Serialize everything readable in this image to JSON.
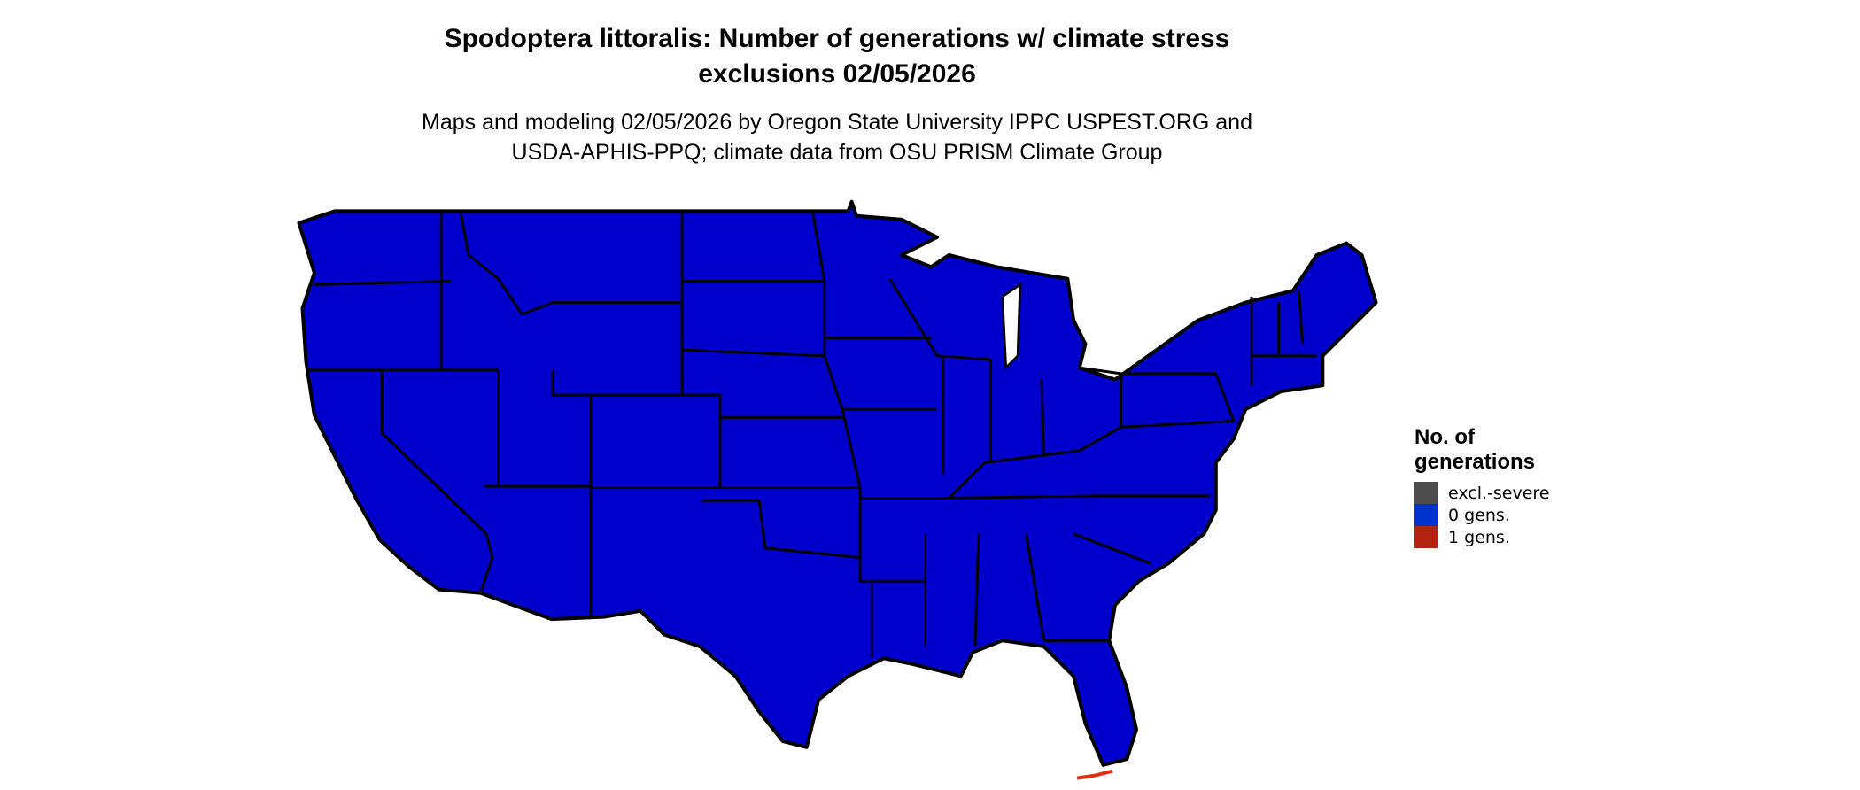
{
  "title_line1": "Spodoptera littoralis: Number of generations w/ climate stress",
  "title_line2": "exclusions 02/05/2026",
  "subtitle_line1": "Maps and modeling 02/05/2026 by Oregon State University IPPC USPEST.ORG and",
  "subtitle_line2": "USDA-APHIS-PPQ; climate data from OSU PRISM Climate Group",
  "map": {
    "region": "Contiguous United States",
    "fill_color": "#0000CC",
    "border_color": "#000000"
  },
  "legend": {
    "title_line1": "No. of",
    "title_line2": "generations",
    "items": [
      {
        "label": "excl.-severe",
        "color": "#4D4D4D"
      },
      {
        "label": "0 gens.",
        "color": "#0033CC"
      },
      {
        "label": "1 gens.",
        "color": "#B22410"
      }
    ]
  }
}
